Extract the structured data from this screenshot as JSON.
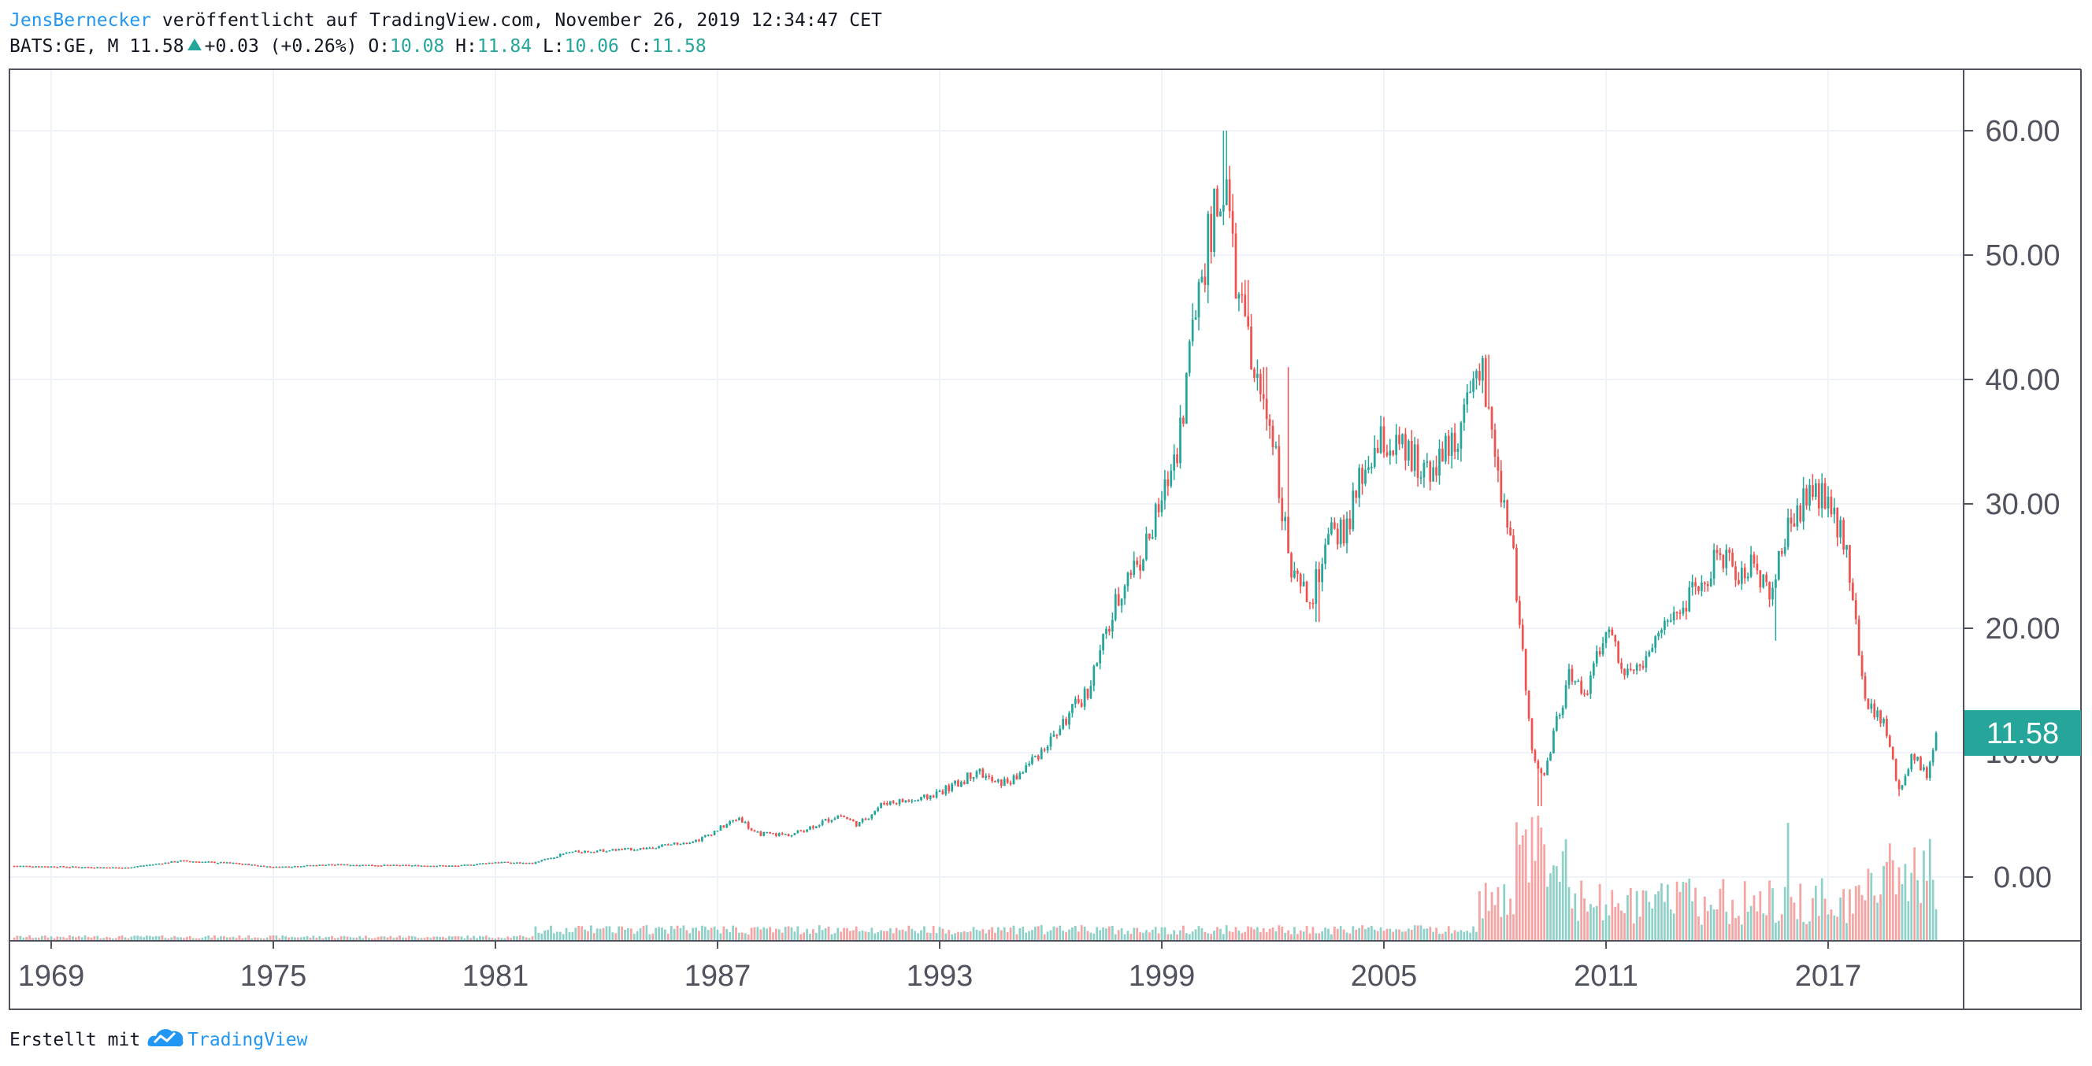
{
  "header": {
    "author": "JensBernecker",
    "published_text": "veröffentlicht auf TradingView.com, November 26, 2019 12:34:47 CET",
    "symbol": "BATS:GE, M",
    "last_price": "11.58",
    "change": "+0.03 (+0.26%)",
    "open_label": "O:",
    "open_value": "10.08",
    "high_label": "H:",
    "high_value": "11.84",
    "low_label": "L:",
    "low_value": "10.06",
    "close_label": "C:",
    "close_value": "11.58"
  },
  "footer": {
    "created_with": "Erstellt mit",
    "brand": "TradingView"
  },
  "colors": {
    "up": "#26a69a",
    "down": "#ef5350",
    "up_volume": "#8fd1c8",
    "down_volume": "#f5a3a3",
    "grid": "#f0f3fa",
    "axis": "#50535e",
    "brand": "#2196f3"
  },
  "chart_data": {
    "type": "candlestick",
    "symbol": "BATS:GE",
    "interval": "M",
    "x_tick_labels": [
      "1969",
      "1975",
      "1981",
      "1987",
      "1993",
      "1999",
      "2005",
      "2011",
      "2017"
    ],
    "y_tick_labels": [
      "0.00",
      "10.00",
      "20.00",
      "30.00",
      "40.00",
      "50.00",
      "60.00"
    ],
    "ylim": [
      -5,
      65
    ],
    "xlim": [
      1968,
      2020.8
    ],
    "last_price_label": "11.58",
    "grid": true,
    "price_path": [
      [
        1968.0,
        0.9
      ],
      [
        1970.0,
        0.8
      ],
      [
        1971.0,
        0.75
      ],
      [
        1972.5,
        1.3
      ],
      [
        1974.0,
        1.1
      ],
      [
        1975.0,
        0.8
      ],
      [
        1976.5,
        1.0
      ],
      [
        1978.0,
        0.95
      ],
      [
        1980.0,
        0.9
      ],
      [
        1981.0,
        1.2
      ],
      [
        1982.0,
        1.1
      ],
      [
        1983.0,
        2.0
      ],
      [
        1985.0,
        2.3
      ],
      [
        1986.5,
        3.0
      ],
      [
        1987.6,
        4.8
      ],
      [
        1988.0,
        3.5
      ],
      [
        1989.0,
        3.4
      ],
      [
        1990.3,
        5.0
      ],
      [
        1990.8,
        4.2
      ],
      [
        1991.5,
        6.0
      ],
      [
        1992.5,
        6.2
      ],
      [
        1993.5,
        7.5
      ],
      [
        1994.0,
        8.6
      ],
      [
        1994.5,
        7.5
      ],
      [
        1995.0,
        7.8
      ],
      [
        1996.0,
        11.0
      ],
      [
        1997.0,
        15.0
      ],
      [
        1998.0,
        24.0
      ],
      [
        1998.5,
        26.0
      ],
      [
        1999.0,
        30.0
      ],
      [
        1999.5,
        36.0
      ],
      [
        2000.0,
        48.0
      ],
      [
        2000.7,
        56.0
      ],
      [
        2001.0,
        48.0
      ],
      [
        2001.5,
        40.0
      ],
      [
        2002.0,
        36.0
      ],
      [
        2002.5,
        24.0
      ],
      [
        2003.0,
        22.0
      ],
      [
        2003.5,
        27.0
      ],
      [
        2004.0,
        28.0
      ],
      [
        2004.5,
        33.0
      ],
      [
        2005.0,
        35.0
      ],
      [
        2006.0,
        33.0
      ],
      [
        2006.7,
        34.0
      ],
      [
        2007.0,
        36.0
      ],
      [
        2007.7,
        40.0
      ],
      [
        2008.0,
        34.0
      ],
      [
        2008.5,
        26.0
      ],
      [
        2009.0,
        10.0
      ],
      [
        2009.3,
        8.0
      ],
      [
        2009.8,
        14.0
      ],
      [
        2010.0,
        16.0
      ],
      [
        2010.5,
        15.0
      ],
      [
        2011.0,
        20.0
      ],
      [
        2011.5,
        17.0
      ],
      [
        2012.0,
        17.0
      ],
      [
        2012.5,
        20.0
      ],
      [
        2013.0,
        22.0
      ],
      [
        2013.5,
        23.0
      ],
      [
        2014.0,
        26.0
      ],
      [
        2014.7,
        24.0
      ],
      [
        2015.0,
        25.0
      ],
      [
        2015.5,
        23.0
      ],
      [
        2016.0,
        29.0
      ],
      [
        2016.5,
        31.0
      ],
      [
        2017.0,
        30.0
      ],
      [
        2017.5,
        27.0
      ],
      [
        2018.0,
        14.0
      ],
      [
        2018.5,
        12.5
      ],
      [
        2018.9,
        7.0
      ],
      [
        2019.3,
        10.0
      ],
      [
        2019.7,
        8.0
      ],
      [
        2019.9,
        11.58
      ]
    ],
    "candle_highs": [
      [
        2000.7,
        60.0
      ],
      [
        2001.3,
        48.0
      ],
      [
        2001.8,
        41.0
      ],
      [
        2002.4,
        41.0
      ],
      [
        2007.8,
        42.0
      ],
      [
        2016.7,
        32.0
      ]
    ],
    "candle_lows": [
      [
        2002.4,
        27.0
      ],
      [
        2003.2,
        20.5
      ],
      [
        2009.2,
        5.7
      ],
      [
        2015.6,
        19.0
      ],
      [
        2018.9,
        6.5
      ]
    ]
  }
}
